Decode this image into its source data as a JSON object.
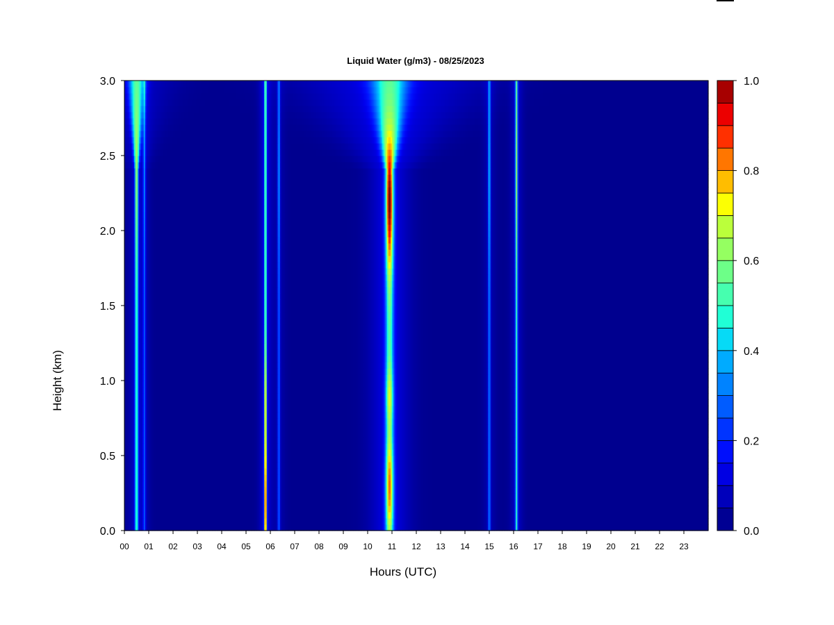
{
  "chart_data": {
    "type": "heatmap",
    "title": "Liquid Water (g/m3) - 08/25/2023",
    "xlabel": "Hours (UTC)",
    "ylabel": "Height (km)",
    "xlim": [
      0,
      24
    ],
    "ylim": [
      0,
      3
    ],
    "x_ticks": [
      "00",
      "01",
      "02",
      "03",
      "04",
      "05",
      "06",
      "07",
      "08",
      "09",
      "10",
      "11",
      "12",
      "13",
      "14",
      "15",
      "16",
      "17",
      "18",
      "19",
      "20",
      "21",
      "22",
      "23"
    ],
    "y_ticks": [
      "0.0",
      "0.5",
      "1.0",
      "1.5",
      "2.0",
      "2.5",
      "3.0"
    ],
    "colorbar": {
      "min": 0,
      "max": 1,
      "levels": 20,
      "tick_labels": [
        "0.0",
        "0.2",
        "0.4",
        "0.6",
        "0.8",
        "1.0"
      ],
      "colors": [
        "#00007f",
        "#0000a3",
        "#0000c8",
        "#0000ec",
        "#0012ff",
        "#0036ff",
        "#005aff",
        "#007eff",
        "#00a2ff",
        "#00c6ff",
        "#11ffe6",
        "#33ffc3",
        "#56ff9f",
        "#7aff7c",
        "#9eff58",
        "#c0ff36",
        "#ffff00",
        "#ffc000",
        "#ff8000",
        "#ff4000",
        "#ff0000",
        "#c80000",
        "#7f0000"
      ]
    },
    "events": [
      {
        "x": 0.5,
        "width": 0.07,
        "peak": 0.55,
        "profile": "uniform",
        "top_spread": 0.06
      },
      {
        "x": 0.82,
        "width": 0.05,
        "peak": 0.25,
        "profile": "uniform",
        "top_spread": 0.0
      },
      {
        "x": 5.8,
        "width": 0.05,
        "peak": 0.85,
        "profile": "low",
        "top_spread": 0.0
      },
      {
        "x": 6.35,
        "width": 0.05,
        "peak": 0.3,
        "profile": "uniform",
        "top_spread": 0.0
      },
      {
        "x": 10.9,
        "width": 0.16,
        "peak": 0.9,
        "profile": "wide",
        "top_spread": 0.18
      },
      {
        "x": 15.0,
        "width": 0.05,
        "peak": 0.35,
        "profile": "uniform",
        "top_spread": 0.0
      },
      {
        "x": 16.12,
        "width": 0.05,
        "peak": 0.55,
        "profile": "uniform",
        "top_spread": 0.0
      }
    ]
  }
}
